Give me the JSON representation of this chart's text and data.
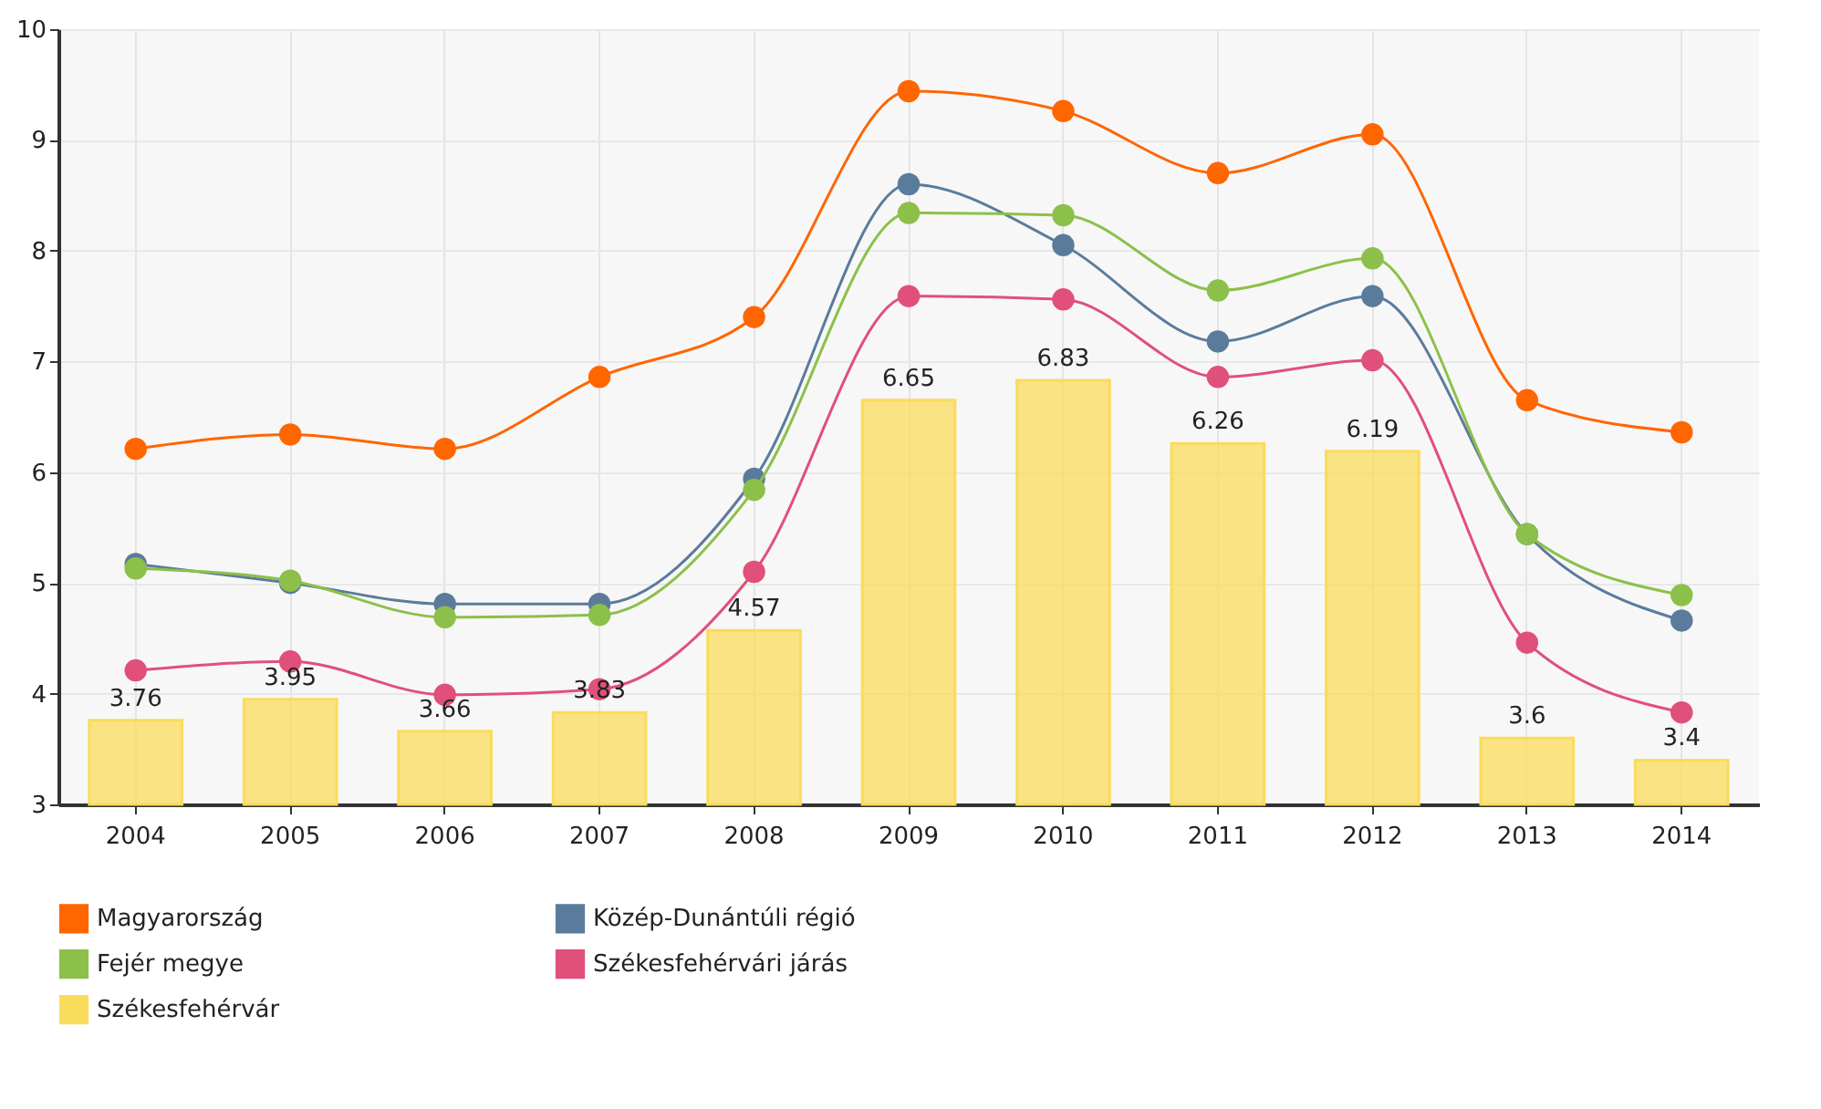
{
  "chart_data": {
    "type": "line",
    "categories": [
      "2004",
      "2005",
      "2006",
      "2007",
      "2008",
      "2009",
      "2010",
      "2011",
      "2012",
      "2013",
      "2014"
    ],
    "ylim": [
      3,
      10
    ],
    "yticks": [
      3,
      4,
      5,
      6,
      7,
      8,
      9,
      10
    ],
    "grid": true,
    "legend": "bottom",
    "marker": "circle",
    "line_style": "solid",
    "series": [
      {
        "name": "Magyarország",
        "color": "#ff6600",
        "values": [
          6.21,
          6.34,
          6.21,
          6.86,
          7.4,
          9.44,
          9.26,
          8.7,
          9.05,
          6.65,
          6.36
        ]
      },
      {
        "name": "Közép-Dunántúli régió",
        "color": "#5b7b9c",
        "values": [
          5.17,
          5.0,
          4.81,
          4.81,
          5.94,
          8.6,
          8.05,
          7.18,
          7.59,
          5.44,
          4.66
        ]
      },
      {
        "name": "Fejér megye",
        "color": "#8cc04a",
        "values": [
          5.13,
          5.02,
          4.69,
          4.71,
          5.84,
          8.34,
          8.32,
          7.64,
          7.93,
          5.44,
          4.89
        ]
      },
      {
        "name": "Székesfehérvári járás",
        "color": "#e0507a",
        "values": [
          4.21,
          4.29,
          3.99,
          4.04,
          5.1,
          7.59,
          7.56,
          6.86,
          7.01,
          4.46,
          3.83
        ]
      },
      {
        "name": "Székesfehérvár",
        "color": "#f9dc5c",
        "type": "bar",
        "values": [
          3.76,
          3.95,
          3.66,
          3.83,
          4.57,
          6.65,
          6.83,
          6.26,
          6.19,
          3.6,
          3.4
        ],
        "value_labels": [
          "3.76",
          "3.95",
          "3.66",
          "3.83",
          "4.57",
          "6.65",
          "6.83",
          "6.26",
          "6.19",
          "3.6",
          "3.4"
        ]
      }
    ]
  }
}
